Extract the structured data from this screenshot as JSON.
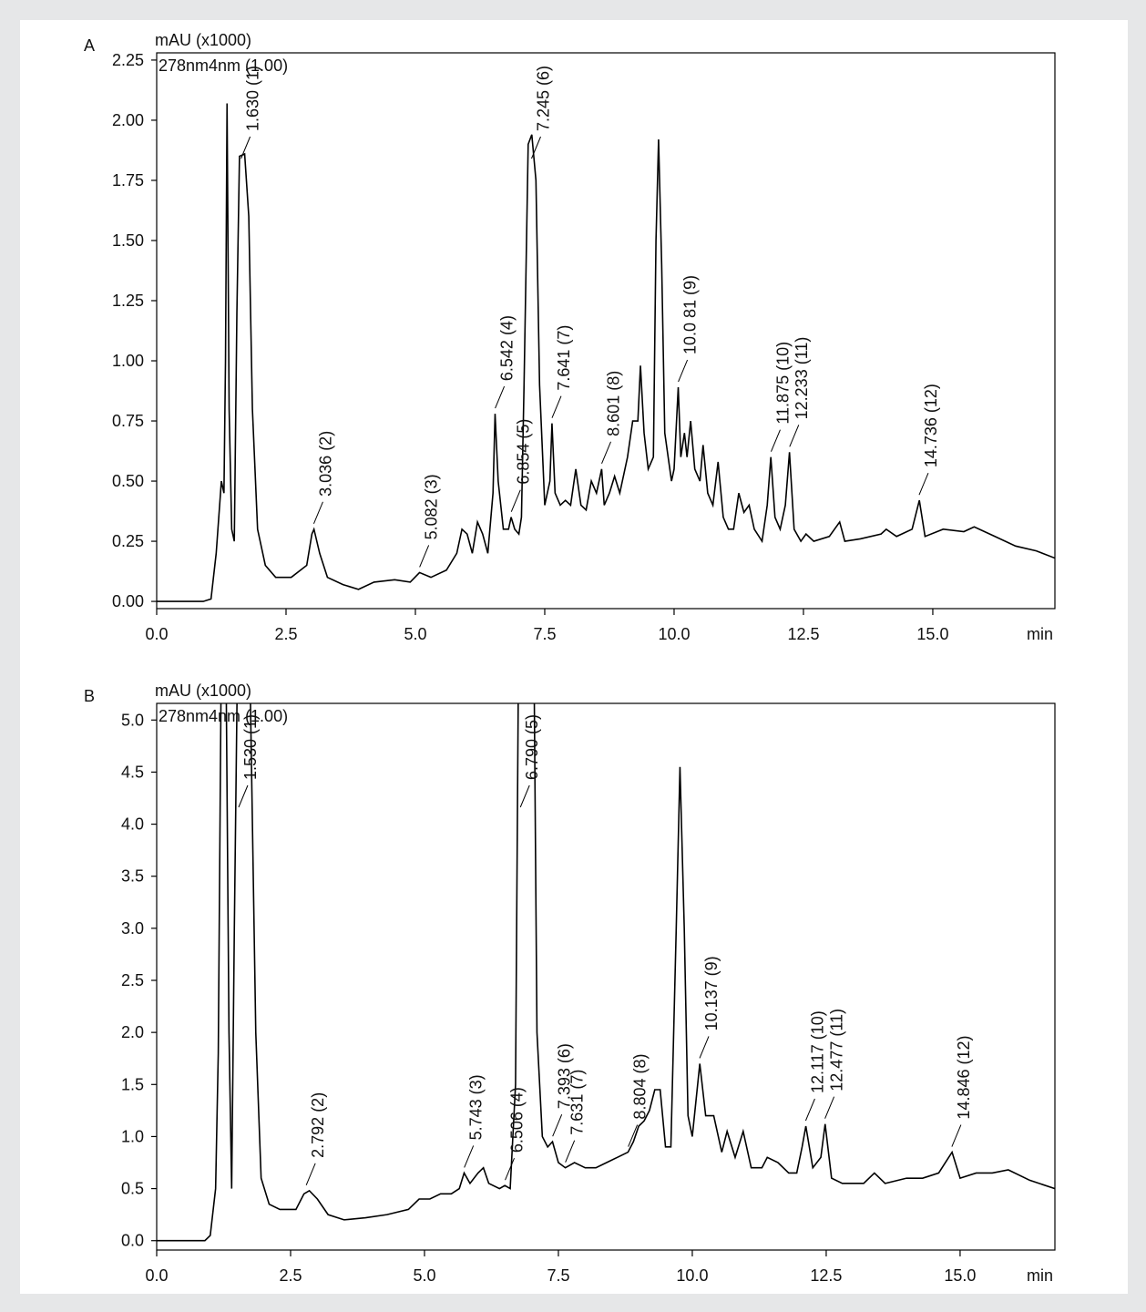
{
  "chart_data": [
    {
      "type": "line",
      "panel": "A",
      "y_label": "mAU (x1000)",
      "channel": "278nm4nm (1.00)",
      "x_label": "min",
      "xlim": [
        0,
        17.36
      ],
      "ylim": [
        -0.03,
        2.28
      ],
      "xticks": [
        {
          "value": 0,
          "label": "0.0"
        },
        2.5,
        {
          "value": 5,
          "label": "5.0"
        },
        7.5,
        {
          "value": 10,
          "label": "10.0"
        },
        12.5,
        {
          "value": 15,
          "label": "15.0"
        }
      ],
      "yticks": [
        {
          "value": 0,
          "label": "0.00"
        },
        0.25,
        {
          "value": 0.5,
          "label": "0.50"
        },
        0.75,
        {
          "value": 1,
          "label": "1.00"
        },
        1.25,
        {
          "value": 1.5,
          "label": "1.50"
        },
        1.75,
        {
          "value": 2,
          "label": "2.00"
        },
        2.25
      ],
      "x": [
        0,
        0.9,
        1.05,
        1.15,
        1.25,
        1.3,
        1.33,
        1.36,
        1.4,
        1.45,
        1.5,
        1.55,
        1.6,
        1.7,
        1.78,
        1.85,
        1.95,
        2.1,
        2.3,
        2.6,
        2.9,
        3.0,
        3.04,
        3.15,
        3.3,
        3.6,
        3.9,
        4.2,
        4.6,
        4.9,
        5.08,
        5.3,
        5.6,
        5.8,
        5.9,
        6.0,
        6.1,
        6.2,
        6.3,
        6.4,
        6.5,
        6.54,
        6.6,
        6.7,
        6.8,
        6.85,
        6.92,
        7.0,
        7.05,
        7.1,
        7.18,
        7.25,
        7.33,
        7.4,
        7.5,
        7.6,
        7.64,
        7.7,
        7.8,
        7.9,
        8.0,
        8.1,
        8.2,
        8.3,
        8.4,
        8.5,
        8.6,
        8.65,
        8.75,
        8.85,
        8.95,
        9.1,
        9.2,
        9.3,
        9.35,
        9.42,
        9.5,
        9.6,
        9.65,
        9.7,
        9.76,
        9.82,
        9.95,
        10.0,
        10.08,
        10.13,
        10.2,
        10.25,
        10.32,
        10.4,
        10.5,
        10.56,
        10.65,
        10.75,
        10.85,
        10.95,
        11.05,
        11.15,
        11.25,
        11.35,
        11.45,
        11.55,
        11.7,
        11.8,
        11.87,
        11.95,
        12.05,
        12.15,
        12.23,
        12.32,
        12.45,
        12.55,
        12.7,
        13.0,
        13.2,
        13.3,
        13.6,
        14.0,
        14.1,
        14.3,
        14.6,
        14.74,
        14.85,
        15.2,
        15.6,
        15.8,
        16.2,
        16.6,
        17.0,
        17.36
      ],
      "series": [
        {
          "color": "#000000",
          "values": [
            0,
            0,
            0.01,
            0.2,
            0.5,
            0.45,
            1.0,
            2.07,
            0.8,
            0.3,
            0.25,
            1.2,
            1.85,
            1.86,
            1.6,
            0.8,
            0.3,
            0.15,
            0.1,
            0.1,
            0.15,
            0.28,
            0.3,
            0.2,
            0.1,
            0.07,
            0.05,
            0.08,
            0.09,
            0.08,
            0.12,
            0.1,
            0.13,
            0.2,
            0.3,
            0.28,
            0.2,
            0.33,
            0.28,
            0.2,
            0.45,
            0.78,
            0.5,
            0.3,
            0.3,
            0.35,
            0.3,
            0.28,
            0.35,
            0.9,
            1.9,
            1.94,
            1.75,
            0.9,
            0.4,
            0.5,
            0.74,
            0.45,
            0.4,
            0.42,
            0.4,
            0.55,
            0.4,
            0.38,
            0.5,
            0.45,
            0.55,
            0.4,
            0.45,
            0.52,
            0.45,
            0.6,
            0.75,
            0.75,
            0.98,
            0.7,
            0.55,
            0.6,
            1.5,
            1.92,
            1.4,
            0.7,
            0.5,
            0.55,
            0.89,
            0.6,
            0.7,
            0.6,
            0.75,
            0.55,
            0.5,
            0.65,
            0.45,
            0.4,
            0.58,
            0.35,
            0.3,
            0.3,
            0.45,
            0.37,
            0.4,
            0.3,
            0.25,
            0.4,
            0.6,
            0.35,
            0.3,
            0.4,
            0.62,
            0.3,
            0.25,
            0.28,
            0.25,
            0.27,
            0.33,
            0.25,
            0.26,
            0.28,
            0.3,
            0.27,
            0.3,
            0.42,
            0.27,
            0.3,
            0.29,
            0.31,
            0.27,
            0.23,
            0.21,
            0.18
          ]
        }
      ],
      "annotations": [
        {
          "label": "1.630 (1)",
          "x": 1.63
        },
        {
          "label": "3.036 (2)",
          "x": 3.036
        },
        {
          "label": "5.082 (3)",
          "x": 5.082
        },
        {
          "label": "6.542 (4)",
          "x": 6.542
        },
        {
          "label": "6.854 (5)",
          "x": 6.854
        },
        {
          "label": "7.245 (6)",
          "x": 7.245
        },
        {
          "label": "7.641 (7)",
          "x": 7.641
        },
        {
          "label": "8.601 (8)",
          "x": 8.601
        },
        {
          "label": "10.0 81 (9)",
          "x": 10.081
        },
        {
          "label": "11.875 (10)",
          "x": 11.875
        },
        {
          "label": "12.233 (11)",
          "x": 12.233
        },
        {
          "label": "14.736 (12)",
          "x": 14.736
        }
      ]
    },
    {
      "type": "line",
      "panel": "B",
      "y_label": "mAU (x1000)",
      "channel": "278nm4nm (1.00)",
      "x_label": "min",
      "xlim": [
        0,
        16.77
      ],
      "ylim": [
        -0.09,
        5.16
      ],
      "xticks": [
        {
          "value": 0,
          "label": "0.0"
        },
        2.5,
        {
          "value": 5,
          "label": "5.0"
        },
        7.5,
        {
          "value": 10,
          "label": "10.0"
        },
        12.5,
        {
          "value": 15,
          "label": "15.0"
        }
      ],
      "yticks": [
        {
          "value": 0,
          "label": "0.0"
        },
        0.5,
        {
          "value": 1,
          "label": "1.0"
        },
        1.5,
        {
          "value": 2,
          "label": "2.0"
        },
        2.5,
        {
          "value": 3,
          "label": "3.0"
        },
        3.5,
        {
          "value": 4,
          "label": "4.0"
        },
        4.5,
        {
          "value": 5,
          "label": "5.0"
        }
      ],
      "x": [
        0,
        0.9,
        1.0,
        1.1,
        1.15,
        1.2,
        1.3,
        1.35,
        1.4,
        1.45,
        1.5,
        1.75,
        1.85,
        1.95,
        2.1,
        2.3,
        2.6,
        2.75,
        2.85,
        3.0,
        3.2,
        3.5,
        3.9,
        4.3,
        4.7,
        4.9,
        5.1,
        5.3,
        5.5,
        5.65,
        5.74,
        5.85,
        6.0,
        6.1,
        6.2,
        6.4,
        6.5,
        6.6,
        6.7,
        6.75,
        7.05,
        7.1,
        7.2,
        7.3,
        7.39,
        7.5,
        7.63,
        7.8,
        8.0,
        8.2,
        8.4,
        8.6,
        8.8,
        8.9,
        9.0,
        9.1,
        9.2,
        9.3,
        9.4,
        9.5,
        9.6,
        9.7,
        9.77,
        9.85,
        9.92,
        10.0,
        10.14,
        10.25,
        10.4,
        10.55,
        10.65,
        10.8,
        10.95,
        11.1,
        11.3,
        11.4,
        11.6,
        11.8,
        11.95,
        12.05,
        12.12,
        12.25,
        12.4,
        12.48,
        12.6,
        12.8,
        13.2,
        13.4,
        13.6,
        14.0,
        14.3,
        14.6,
        14.85,
        15.0,
        15.3,
        15.6,
        15.9,
        16.3,
        16.77
      ],
      "series": [
        {
          "color": "#000000",
          "values": [
            0,
            0,
            0.05,
            0.5,
            1.8,
            5.2,
            5.2,
            2,
            0.5,
            3,
            5.2,
            5.2,
            2,
            0.6,
            0.35,
            0.3,
            0.3,
            0.45,
            0.48,
            0.4,
            0.25,
            0.2,
            0.22,
            0.25,
            0.3,
            0.4,
            0.4,
            0.45,
            0.45,
            0.5,
            0.65,
            0.55,
            0.65,
            0.7,
            0.55,
            0.5,
            0.53,
            0.5,
            1.5,
            5.2,
            5.2,
            2,
            1.0,
            0.9,
            0.95,
            0.75,
            0.7,
            0.75,
            0.7,
            0.7,
            0.75,
            0.8,
            0.85,
            0.95,
            1.1,
            1.15,
            1.25,
            1.45,
            1.45,
            0.9,
            0.9,
            3,
            4.55,
            3,
            1.2,
            1.0,
            1.7,
            1.2,
            1.2,
            0.85,
            1.05,
            0.8,
            1.05,
            0.7,
            0.7,
            0.8,
            0.75,
            0.65,
            0.65,
            0.9,
            1.1,
            0.7,
            0.8,
            1.12,
            0.6,
            0.55,
            0.55,
            0.65,
            0.55,
            0.6,
            0.6,
            0.65,
            0.85,
            0.6,
            0.65,
            0.65,
            0.68,
            0.58,
            0.5
          ]
        }
      ],
      "annotations": [
        {
          "label": "1.530 (1)",
          "x": 1.53
        },
        {
          "label": "2.792 (2)",
          "x": 2.792
        },
        {
          "label": "5.743 (3)",
          "x": 5.743
        },
        {
          "label": "6.506 (4)",
          "x": 6.506
        },
        {
          "label": "6.790 (5)",
          "x": 6.79
        },
        {
          "label": "7.393 (6)",
          "x": 7.393
        },
        {
          "label": "7.631 (7)",
          "x": 7.631
        },
        {
          "label": "8.804 (8)",
          "x": 8.804
        },
        {
          "label": "10.137 (9)",
          "x": 10.137
        },
        {
          "label": "12.117 (10)",
          "x": 12.117
        },
        {
          "label": "12.477 (11)",
          "x": 12.477
        },
        {
          "label": "14.846 (12)",
          "x": 14.846
        }
      ]
    }
  ]
}
